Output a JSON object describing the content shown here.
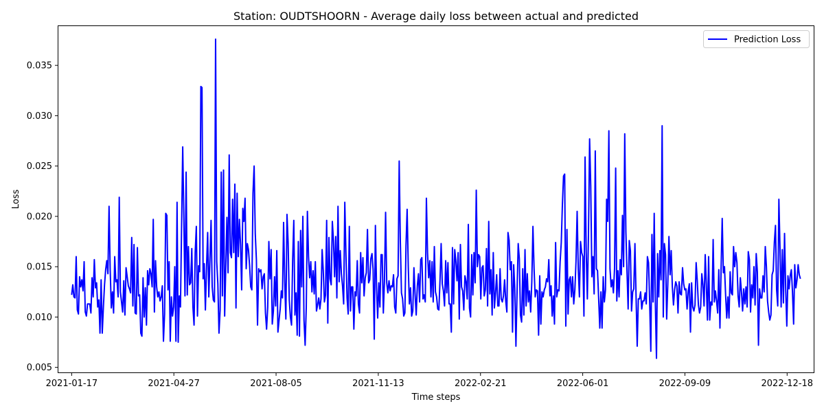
{
  "chart_data": {
    "type": "line",
    "title": "Station: OUDTSHOORN - Average daily loss between actual and predicted",
    "xlabel": "Time steps",
    "ylabel": "Loss",
    "x_start": "2021-01-17",
    "x_end": "2022-12-31",
    "xlim": [
      "2021-01-04",
      "2023-01-13"
    ],
    "ylim": [
      0.0045,
      0.0389
    ],
    "xticks": [
      "2021-01-17",
      "2021-04-27",
      "2021-08-05",
      "2021-11-13",
      "2022-02-21",
      "2022-06-01",
      "2022-09-09",
      "2022-12-18"
    ],
    "yticks": [
      0.005,
      0.01,
      0.015,
      0.02,
      0.025,
      0.03,
      0.035
    ],
    "ytick_labels": [
      "0.005",
      "0.010",
      "0.015",
      "0.020",
      "0.025",
      "0.030",
      "0.035"
    ],
    "grid": false,
    "legend_position": "top-right",
    "series": [
      {
        "name": "Prediction Loss",
        "color": "#0000ff",
        "values": [
          0.0122,
          0.0132,
          0.012,
          0.0119,
          0.016,
          0.0107,
          0.0103,
          0.014,
          0.013,
          0.0137,
          0.0126,
          0.0155,
          0.0105,
          0.0101,
          0.0113,
          0.0113,
          0.0113,
          0.0104,
          0.0139,
          0.012,
          0.0157,
          0.0129,
          0.0134,
          0.011,
          0.0117,
          0.0084,
          0.0137,
          0.0084,
          0.011,
          0.0132,
          0.0147,
          0.0156,
          0.0143,
          0.021,
          0.0147,
          0.0109,
          0.0125,
          0.0104,
          0.016,
          0.0135,
          0.0137,
          0.012,
          0.0219,
          0.0125,
          0.0115,
          0.0105,
          0.0136,
          0.0102,
          0.0149,
          0.014,
          0.0131,
          0.0128,
          0.0124,
          0.0179,
          0.0111,
          0.0172,
          0.0104,
          0.0103,
          0.0169,
          0.0121,
          0.0122,
          0.0084,
          0.0081,
          0.0139,
          0.01,
          0.0129,
          0.0092,
          0.0146,
          0.0132,
          0.0148,
          0.0143,
          0.013,
          0.0197,
          0.0105,
          0.0156,
          0.013,
          0.012,
          0.0125,
          0.0116,
          0.012,
          0.0131,
          0.0076,
          0.0103,
          0.0203,
          0.0201,
          0.0127,
          0.0155,
          0.0076,
          0.012,
          0.0101,
          0.011,
          0.015,
          0.0076,
          0.0214,
          0.0075,
          0.0121,
          0.011,
          0.019,
          0.0269,
          0.0199,
          0.0121,
          0.0244,
          0.0122,
          0.017,
          0.0132,
          0.0134,
          0.0168,
          0.011,
          0.0092,
          0.0164,
          0.019,
          0.0101,
          0.0151,
          0.0145,
          0.0329,
          0.0328,
          0.0138,
          0.0153,
          0.0107,
          0.0149,
          0.0184,
          0.012,
          0.0157,
          0.0196,
          0.013,
          0.0117,
          0.0115,
          0.0376,
          0.0155,
          0.0133,
          0.0084,
          0.0107,
          0.0244,
          0.0121,
          0.0246,
          0.0101,
          0.015,
          0.0199,
          0.0144,
          0.0261,
          0.0164,
          0.0159,
          0.0217,
          0.0164,
          0.0232,
          0.0109,
          0.0223,
          0.016,
          0.0197,
          0.0172,
          0.0127,
          0.0208,
          0.0195,
          0.0218,
          0.0148,
          0.0173,
          0.0167,
          0.0151,
          0.013,
          0.0127,
          0.0223,
          0.025,
          0.0183,
          0.0157,
          0.0092,
          0.0148,
          0.0145,
          0.0147,
          0.0128,
          0.014,
          0.0143,
          0.0104,
          0.0088,
          0.011,
          0.0175,
          0.0138,
          0.0167,
          0.0093,
          0.0106,
          0.014,
          0.0111,
          0.0166,
          0.0085,
          0.0097,
          0.0108,
          0.0126,
          0.0119,
          0.0194,
          0.0135,
          0.0098,
          0.0202,
          0.0174,
          0.0117,
          0.01,
          0.0092,
          0.0157,
          0.0196,
          0.0102,
          0.0124,
          0.0082,
          0.0175,
          0.0081,
          0.0186,
          0.013,
          0.02,
          0.0097,
          0.0072,
          0.0109,
          0.0205,
          0.016,
          0.0139,
          0.0155,
          0.0125,
          0.0146,
          0.0123,
          0.0155,
          0.0106,
          0.0112,
          0.0119,
          0.0108,
          0.0118,
          0.0167,
          0.0146,
          0.0115,
          0.0122,
          0.0196,
          0.0094,
          0.0179,
          0.0138,
          0.0132,
          0.0195,
          0.0176,
          0.014,
          0.018,
          0.0119,
          0.021,
          0.0135,
          0.0166,
          0.0143,
          0.0131,
          0.0113,
          0.0214,
          0.0163,
          0.0119,
          0.0103,
          0.019,
          0.0106,
          0.013,
          0.013,
          0.0088,
          0.0125,
          0.0121,
          0.0156,
          0.0113,
          0.0104,
          0.0164,
          0.0134,
          0.0159,
          0.0121,
          0.0139,
          0.0144,
          0.0187,
          0.0134,
          0.0137,
          0.0158,
          0.0163,
          0.0147,
          0.0078,
          0.0191,
          0.013,
          0.0099,
          0.0134,
          0.011,
          0.0162,
          0.0162,
          0.0104,
          0.0136,
          0.0204,
          0.0134,
          0.0124,
          0.0136,
          0.0126,
          0.0131,
          0.013,
          0.0142,
          0.011,
          0.0104,
          0.0138,
          0.0141,
          0.0255,
          0.0175,
          0.0124,
          0.0118,
          0.0101,
          0.0104,
          0.0171,
          0.0207,
          0.015,
          0.0113,
          0.0129,
          0.0101,
          0.0106,
          0.0149,
          0.0123,
          0.0102,
          0.0131,
          0.0143,
          0.0115,
          0.0157,
          0.0159,
          0.0118,
          0.0122,
          0.0115,
          0.0218,
          0.0164,
          0.0139,
          0.0156,
          0.012,
          0.0155,
          0.0115,
          0.017,
          0.0125,
          0.012,
          0.0108,
          0.0107,
          0.0136,
          0.0173,
          0.0133,
          0.0126,
          0.0111,
          0.0156,
          0.0124,
          0.0154,
          0.0113,
          0.0113,
          0.0085,
          0.0169,
          0.0113,
          0.0167,
          0.0156,
          0.0136,
          0.0164,
          0.0098,
          0.0172,
          0.013,
          0.0126,
          0.0107,
          0.0141,
          0.0135,
          0.0118,
          0.0192,
          0.0109,
          0.01,
          0.0162,
          0.0122,
          0.0164,
          0.0134,
          0.0226,
          0.015,
          0.0162,
          0.016,
          0.0118,
          0.0149,
          0.0151,
          0.0121,
          0.0127,
          0.0168,
          0.0111,
          0.0195,
          0.0123,
          0.0147,
          0.0102,
          0.0164,
          0.0109,
          0.0124,
          0.0142,
          0.0111,
          0.0111,
          0.0148,
          0.0118,
          0.0115,
          0.0121,
          0.0137,
          0.0116,
          0.0105,
          0.0184,
          0.0176,
          0.0147,
          0.0155,
          0.0085,
          0.0152,
          0.0128,
          0.0071,
          0.0125,
          0.0173,
          0.0158,
          0.0102,
          0.0095,
          0.0148,
          0.0102,
          0.0167,
          0.0111,
          0.0143,
          0.0115,
          0.0126,
          0.0105,
          0.0135,
          0.019,
          0.0148,
          0.012,
          0.0127,
          0.0126,
          0.0082,
          0.0141,
          0.0093,
          0.0125,
          0.012,
          0.0127,
          0.013,
          0.0138,
          0.0135,
          0.0157,
          0.0121,
          0.0131,
          0.0101,
          0.0121,
          0.0093,
          0.0174,
          0.012,
          0.0127,
          0.0126,
          0.0155,
          0.0174,
          0.0212,
          0.024,
          0.0242,
          0.0091,
          0.0187,
          0.0103,
          0.0137,
          0.014,
          0.012,
          0.014,
          0.0113,
          0.0127,
          0.0155,
          0.0205,
          0.0148,
          0.012,
          0.0175,
          0.0164,
          0.016,
          0.0101,
          0.0259,
          0.0165,
          0.0118,
          0.0182,
          0.0277,
          0.023,
          0.014,
          0.016,
          0.0123,
          0.0265,
          0.0148,
          0.0146,
          0.0118,
          0.0089,
          0.0125,
          0.0089,
          0.014,
          0.0115,
          0.0127,
          0.0217,
          0.0195,
          0.0285,
          0.0148,
          0.013,
          0.0137,
          0.0124,
          0.0148,
          0.0248,
          0.0116,
          0.0146,
          0.012,
          0.0157,
          0.0142,
          0.0201,
          0.015,
          0.0282,
          0.0185,
          0.0145,
          0.0108,
          0.0176,
          0.0166,
          0.0106,
          0.0125,
          0.0128,
          0.0173,
          0.012,
          0.0071,
          0.0118,
          0.0118,
          0.0125,
          0.0108,
          0.0116,
          0.0116,
          0.0124,
          0.0113,
          0.016,
          0.0154,
          0.0115,
          0.0066,
          0.0182,
          0.0115,
          0.0203,
          0.0114,
          0.0059,
          0.0163,
          0.012,
          0.0166,
          0.0137,
          0.029,
          0.01,
          0.0173,
          0.0162,
          0.0098,
          0.0133,
          0.018,
          0.0142,
          0.0166,
          0.013,
          0.0112,
          0.0127,
          0.0135,
          0.0131,
          0.0104,
          0.0135,
          0.0123,
          0.0122,
          0.0149,
          0.0133,
          0.0127,
          0.0128,
          0.0108,
          0.0126,
          0.0133,
          0.0085,
          0.0134,
          0.011,
          0.0106,
          0.0112,
          0.0154,
          0.0136,
          0.0112,
          0.0104,
          0.011,
          0.0143,
          0.0132,
          0.0111,
          0.0162,
          0.0132,
          0.0097,
          0.016,
          0.0097,
          0.0115,
          0.0112,
          0.0177,
          0.0115,
          0.0126,
          0.0116,
          0.0104,
          0.0147,
          0.0089,
          0.0147,
          0.0198,
          0.0144,
          0.015,
          0.0122,
          0.0099,
          0.012,
          0.0099,
          0.0145,
          0.0124,
          0.0122,
          0.017,
          0.015,
          0.0164,
          0.0154,
          0.0121,
          0.011,
          0.0139,
          0.0125,
          0.0106,
          0.0128,
          0.0113,
          0.013,
          0.011,
          0.0165,
          0.0157,
          0.0105,
          0.0132,
          0.0119,
          0.015,
          0.0112,
          0.0163,
          0.0145,
          0.0072,
          0.0128,
          0.0119,
          0.0119,
          0.0141,
          0.0125,
          0.017,
          0.015,
          0.0116,
          0.0105,
          0.0097,
          0.0102,
          0.0142,
          0.0146,
          0.0174,
          0.0191,
          0.0127,
          0.0111,
          0.0217,
          0.0168,
          0.011,
          0.0167,
          0.0114,
          0.0183,
          0.0128,
          0.0091,
          0.0141,
          0.0128,
          0.0141,
          0.0147,
          0.0125,
          0.0093,
          0.0152,
          0.0129,
          0.0137,
          0.0152,
          0.0142,
          0.0138
        ]
      }
    ]
  }
}
